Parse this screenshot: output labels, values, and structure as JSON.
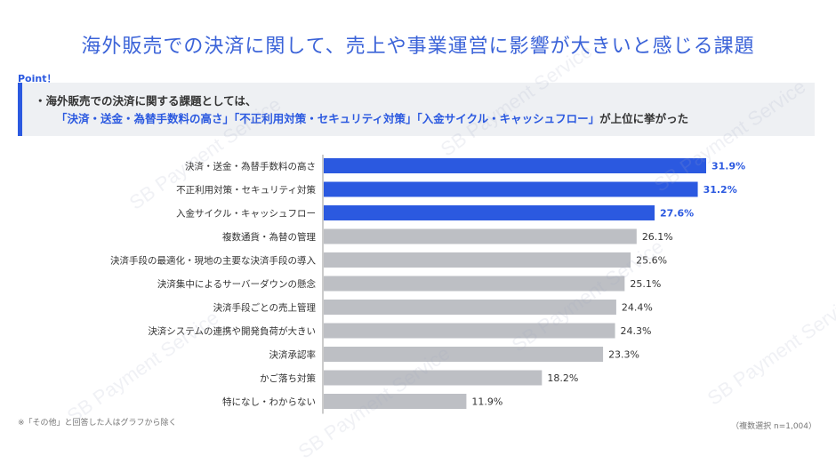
{
  "title": "海外販売での決済に関して、売上や事業運営に影響が大きいと感じる課題",
  "point": {
    "label": "Point！",
    "line1": "・海外販売での決済に関する課題としては、",
    "line2_parts": {
      "h1": "「決済・送金・為替手数料の高さ」",
      "h2": "「不正利用対策・セキュリティ対策」",
      "h3": "「入金サイクル・キャッシュフロー」",
      "tail": "が上位に挙がった"
    }
  },
  "watermark_text": "SB Payment Service",
  "footnote": "※「その他」と回答した人はグラフから除く",
  "sample_note": "（複数選択 n=1,004）",
  "colors": {
    "highlight": "#2b59e0",
    "normal": "#bdbfc4",
    "title": "#3b63d8"
  },
  "chart_data": {
    "type": "bar",
    "orientation": "horizontal",
    "categories": [
      "決済・送金・為替手数料の高さ",
      "不正利用対策・セキュリティ対策",
      "入金サイクル・キャッシュフロー",
      "複数通貨・為替の管理",
      "決済手段の最適化・現地の主要な決済手段の導入",
      "決済集中によるサーバーダウンの懸念",
      "決済手段ごとの売上管理",
      "決済システムの連携や開発負荷が大きい",
      "決済承認率",
      "かご落ち対策",
      "特になし・わからない"
    ],
    "values": [
      31.9,
      31.2,
      27.6,
      26.1,
      25.6,
      25.1,
      24.4,
      24.3,
      23.3,
      18.2,
      11.9
    ],
    "value_labels": [
      "31.9%",
      "31.2%",
      "27.6%",
      "26.1%",
      "25.6%",
      "25.1%",
      "24.4%",
      "24.3%",
      "23.3%",
      "18.2%",
      "11.9%"
    ],
    "highlighted": [
      true,
      true,
      true,
      false,
      false,
      false,
      false,
      false,
      false,
      false,
      false
    ],
    "xlim": [
      0,
      35
    ]
  }
}
